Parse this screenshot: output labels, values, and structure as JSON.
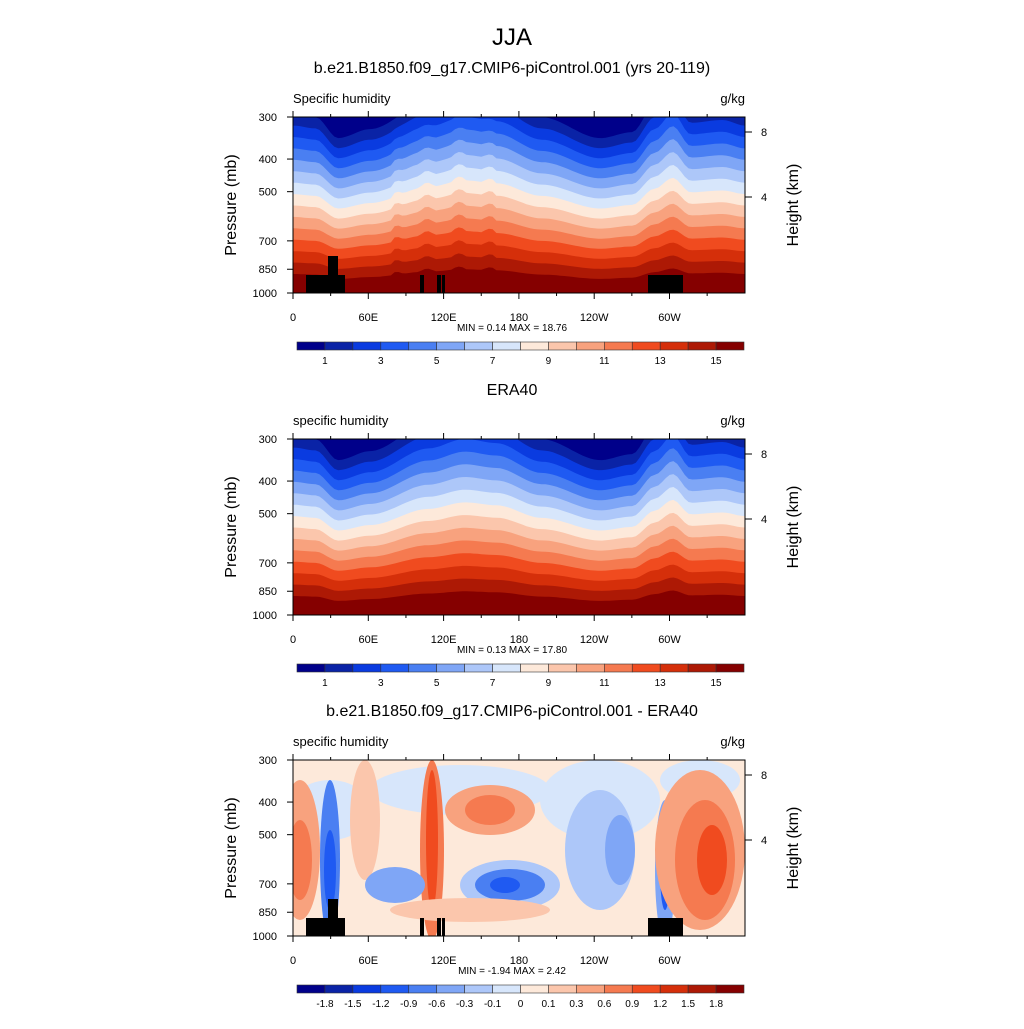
{
  "chart_data": {
    "type": "heatmap",
    "title": "JJA",
    "panels": [
      {
        "title": "b.e21.B1850.f09_g17.CMIP6-piControl.001 (yrs 20-119)",
        "left_label": "Specific humidity",
        "right_label": "g/kg",
        "min_max": "MIN =   0.14  MAX =  18.76",
        "min": 0.14,
        "max": 18.76,
        "kind": "model",
        "levels": [
          1,
          2,
          3,
          4,
          5,
          6,
          7,
          8,
          9,
          10,
          11,
          12,
          13,
          14,
          15
        ],
        "colorbar_labels": [
          "1",
          "3",
          "5",
          "7",
          "9",
          "11",
          "13",
          "15"
        ],
        "topography": true
      },
      {
        "title": "ERA40",
        "left_label": "specific humidity",
        "right_label": "g/kg",
        "min_max": "MIN =   0.13  MAX =  17.80",
        "min": 0.13,
        "max": 17.8,
        "kind": "obs",
        "levels": [
          1,
          2,
          3,
          4,
          5,
          6,
          7,
          8,
          9,
          10,
          11,
          12,
          13,
          14,
          15
        ],
        "colorbar_labels": [
          "1",
          "3",
          "5",
          "7",
          "9",
          "11",
          "13",
          "15"
        ],
        "topography": false
      },
      {
        "title": "b.e21.B1850.f09_g17.CMIP6-piControl.001 - ERA40",
        "left_label": "specific humidity",
        "right_label": "g/kg",
        "min_max": "MIN =  -1.94  MAX =   2.42",
        "min": -1.94,
        "max": 2.42,
        "kind": "diff",
        "levels": [
          -1.8,
          -1.5,
          -1.2,
          -0.9,
          -0.6,
          -0.3,
          -0.1,
          0,
          0.1,
          0.3,
          0.6,
          0.9,
          1.2,
          1.5,
          1.8
        ],
        "colorbar_labels": [
          "-1.8",
          "-1.5",
          "-1.2",
          "-0.9",
          "-0.6",
          "-0.3",
          "-0.1",
          "0",
          "0.1",
          "0.3",
          "0.6",
          "0.9",
          "1.2",
          "1.5",
          "1.8"
        ],
        "topography": true
      }
    ],
    "xaxis": {
      "label": "",
      "ticks": [
        "0",
        "60E",
        "120E",
        "180",
        "120W",
        "60W"
      ],
      "range": [
        0,
        360
      ]
    },
    "yaxis": {
      "label": "Pressure (mb)",
      "ticks": [
        "300",
        "400",
        "500",
        "700",
        "850",
        "1000"
      ],
      "tick_values": [
        300,
        400,
        500,
        700,
        850,
        1000
      ],
      "range": [
        1000,
        300
      ]
    },
    "y2axis": {
      "label": "Height (km)",
      "ticks": [
        "8",
        "4"
      ],
      "tick_values": [
        8,
        4
      ]
    },
    "colors": [
      "#00008a",
      "#0a23a6",
      "#0a3be0",
      "#1f5af2",
      "#4a7ff2",
      "#7fa6f6",
      "#adc7f9",
      "#d7e6fb",
      "#fde9da",
      "#fbc6ac",
      "#f8a27e",
      "#f57a50",
      "#f04b1f",
      "#d52f0a",
      "#ad1905",
      "#850000"
    ],
    "topo_color": "#000000"
  }
}
